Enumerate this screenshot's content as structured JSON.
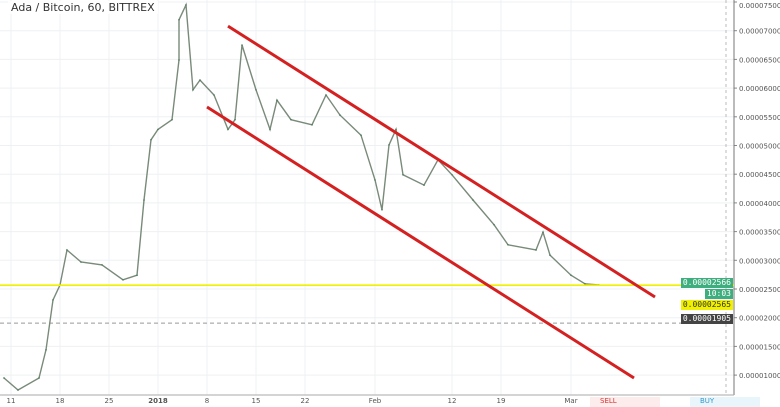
{
  "title": "Ada / Bitcoin, 60, BITTREX",
  "colors": {
    "price_line": "#7a8a7a",
    "channel": "#d42020",
    "support": "#f0f000",
    "last_price": "#3fae7f",
    "crosshair_label": "#444444"
  },
  "chart_data": {
    "type": "line",
    "title": "",
    "xlabel": "",
    "ylabel": "",
    "ylim": [
      6.5e-06,
      7.55e-05
    ],
    "grid": true,
    "x_ticks": [
      "11",
      "18",
      "25",
      "2018",
      "8",
      "15",
      "22",
      "Feb",
      "12",
      "19",
      "Mar"
    ],
    "y_ticks": [
      "0.00007500",
      "0.00007000",
      "0.00006500",
      "0.00006000",
      "0.00005500",
      "0.00005000",
      "0.00004500",
      "0.00004000",
      "0.00003500",
      "0.00003000",
      "0.00002500",
      "0.00002000",
      "0.00001500",
      "0.00001000"
    ],
    "series": [
      {
        "x": [
          "2017-12-10",
          "2017-12-12",
          "2017-12-15",
          "2017-12-16",
          "2017-12-17",
          "2017-12-18",
          "2017-12-19",
          "2017-12-21",
          "2017-12-24",
          "2017-12-27",
          "2017-12-29",
          "2017-12-30",
          "2017-12-31",
          "2018-01-01",
          "2018-01-03",
          "2018-01-04",
          "2018-01-04",
          "2018-01-05",
          "2018-01-06",
          "2018-01-07",
          "2018-01-09",
          "2018-01-11",
          "2018-01-12",
          "2018-01-13",
          "2018-01-15",
          "2018-01-17",
          "2018-01-18",
          "2018-01-20",
          "2018-01-23",
          "2018-01-25",
          "2018-01-27",
          "2018-01-30",
          "2018-02-01",
          "2018-02-02",
          "2018-02-03",
          "2018-02-04",
          "2018-02-05",
          "2018-02-08",
          "2018-02-10",
          "2018-02-12",
          "2018-02-15",
          "2018-02-18",
          "2018-02-20",
          "2018-02-24",
          "2018-02-25",
          "2018-02-26",
          "2018-03-01",
          "2018-03-03",
          "2018-03-05"
        ],
        "y": [
          9.5e-06,
          7.4e-06,
          9.5e-06,
          1.44e-05,
          2.31e-05,
          2.57e-05,
          3.18e-05,
          2.97e-05,
          2.92e-05,
          2.66e-05,
          2.74e-05,
          4.05e-05,
          5.1e-05,
          5.28e-05,
          5.45e-05,
          6.49e-05,
          7.19e-05,
          7.45e-05,
          5.97e-05,
          6.14e-05,
          5.88e-05,
          5.28e-05,
          5.45e-05,
          6.75e-05,
          5.97e-05,
          5.28e-05,
          5.79e-05,
          5.45e-05,
          5.36e-05,
          5.88e-05,
          5.53e-05,
          5.18e-05,
          4.4e-05,
          3.88e-05,
          5.01e-05,
          5.28e-05,
          4.49e-05,
          4.31e-05,
          4.75e-05,
          4.49e-05,
          4.05e-05,
          3.62e-05,
          3.27e-05,
          3.18e-05,
          3.49e-05,
          3.09e-05,
          2.74e-05,
          2.59e-05,
          2.57e-05
        ]
      }
    ],
    "annotations": {
      "upper_channel": [
        [
          "2018-01-11",
          7.08e-05
        ],
        [
          "2018-03-13",
          2.36e-05
        ]
      ],
      "lower_channel": [
        [
          "2018-01-08",
          5.67e-05
        ],
        [
          "2018-03-10",
          9.5e-06
        ]
      ],
      "support_level": 2.566e-05
    }
  },
  "labels": {
    "last_price": "0.00002566",
    "countdown": "10:03",
    "support_price": "0.00002565",
    "crosshair_price": "0.00001905"
  },
  "orders": {
    "sell": "SELL",
    "buy": "BUY"
  }
}
